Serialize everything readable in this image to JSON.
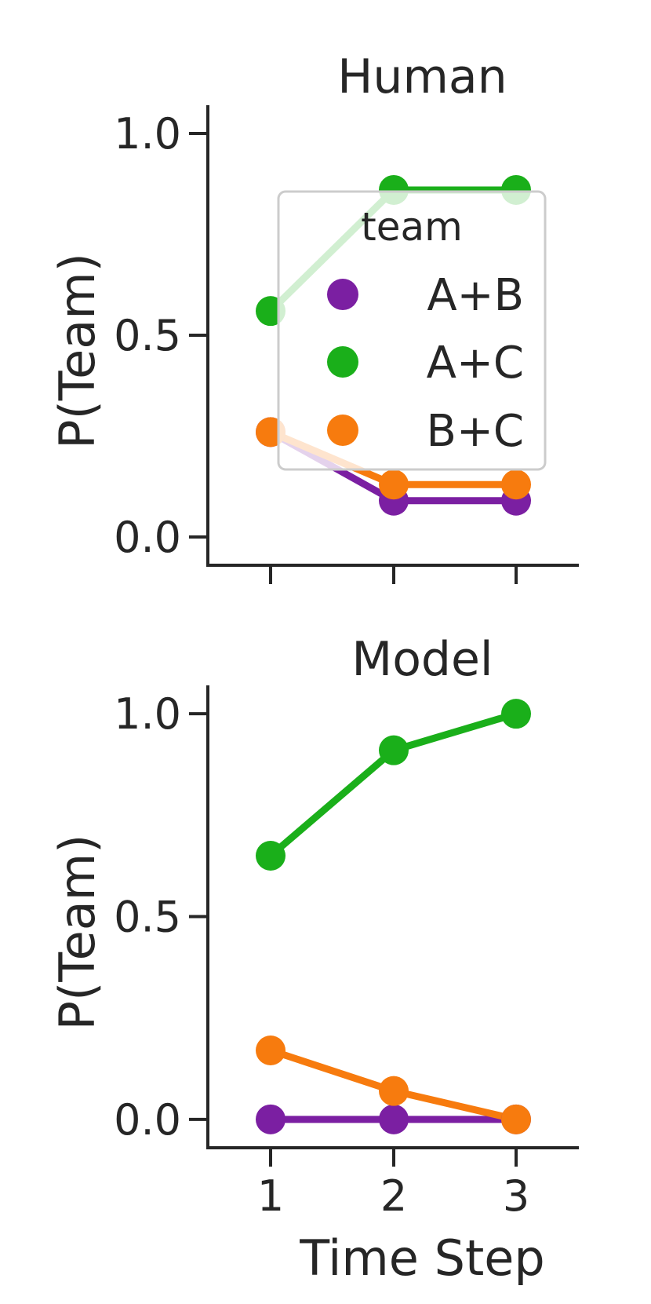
{
  "chart_data": [
    {
      "type": "line",
      "title": "Human",
      "xlabel": "",
      "ylabel": "P(Team)",
      "x": [
        1,
        2,
        3
      ],
      "x_tick_labels": [
        "",
        "",
        ""
      ],
      "y_ticks": [
        "0.0",
        "0.5",
        "1.0"
      ],
      "ylim": [
        -0.07,
        1.07
      ],
      "series": [
        {
          "name": "A+B",
          "color": "#7b1fa2",
          "values": [
            0.26,
            0.09,
            0.09
          ]
        },
        {
          "name": "A+C",
          "color": "#1aaf1a",
          "values": [
            0.56,
            0.86,
            0.86
          ]
        },
        {
          "name": "B+C",
          "color": "#f77b0e",
          "values": [
            0.26,
            0.13,
            0.13
          ]
        }
      ],
      "legend": {
        "title": "team",
        "entries": [
          "A+B",
          "A+C",
          "B+C"
        ],
        "placement": "center-right"
      },
      "grid": false
    },
    {
      "type": "line",
      "title": "Model",
      "xlabel": "Time Step",
      "ylabel": "P(Team)",
      "x": [
        1,
        2,
        3
      ],
      "x_tick_labels": [
        "1",
        "2",
        "3"
      ],
      "y_ticks": [
        "0.0",
        "0.5",
        "1.0"
      ],
      "ylim": [
        -0.07,
        1.07
      ],
      "series": [
        {
          "name": "A+B",
          "color": "#7b1fa2",
          "values": [
            0.0,
            0.0,
            0.0
          ]
        },
        {
          "name": "A+C",
          "color": "#1aaf1a",
          "values": [
            0.65,
            0.91,
            1.0
          ]
        },
        {
          "name": "B+C",
          "color": "#f77b0e",
          "values": [
            0.17,
            0.07,
            0.0
          ]
        }
      ],
      "grid": false
    }
  ]
}
